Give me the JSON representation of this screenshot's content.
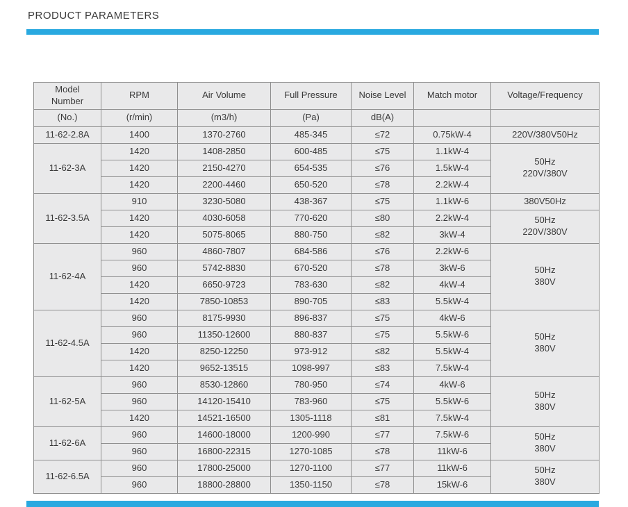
{
  "page": {
    "title": "PRODUCT PARAMETERS"
  },
  "theme": {
    "accent": "#29a9e0",
    "table_bg": "#e9e9ea",
    "table_border": "#8f8f8f",
    "text": "#3a3a3a"
  },
  "table": {
    "columns": [
      {
        "label": "Model\nNumber",
        "unit": "(No.)"
      },
      {
        "label": "RPM",
        "unit": "(r/min)"
      },
      {
        "label": "Air Volume",
        "unit": "(m3/h)"
      },
      {
        "label": "Full Pressure",
        "unit": "(Pa)"
      },
      {
        "label": "Noise Level",
        "unit": "dB(A)"
      },
      {
        "label": "Match motor",
        "unit": ""
      },
      {
        "label": "Voltage/Frequency",
        "unit": ""
      }
    ],
    "sections": [
      {
        "model": "11-62-2.8A",
        "rows": [
          [
            "1400",
            "1370-2760",
            "485-345",
            "≤72",
            "0.75kW-4"
          ]
        ],
        "voltage_spans": [
          {
            "span": 1,
            "text": "220V/380V50Hz"
          }
        ]
      },
      {
        "model": "11-62-3A",
        "rows": [
          [
            "1420",
            "1408-2850",
            "600-485",
            "≤75",
            "1.1kW-4"
          ],
          [
            "1420",
            "2150-4270",
            "654-535",
            "≤76",
            "1.5kW-4"
          ],
          [
            "1420",
            "2200-4460",
            "650-520",
            "≤78",
            "2.2kW-4"
          ]
        ],
        "voltage_spans": [
          {
            "span": 3,
            "text": "50Hz\n220V/380V"
          }
        ]
      },
      {
        "model": "11-62-3.5A",
        "rows": [
          [
            "910",
            "3230-5080",
            "438-367",
            "≤75",
            "1.1kW-6"
          ],
          [
            "1420",
            "4030-6058",
            "770-620",
            "≤80",
            "2.2kW-4"
          ],
          [
            "1420",
            "5075-8065",
            "880-750",
            "≤82",
            "3kW-4"
          ]
        ],
        "voltage_spans": [
          {
            "span": 1,
            "text": "380V50Hz"
          },
          {
            "span": 2,
            "text": "50Hz\n220V/380V"
          }
        ]
      },
      {
        "model": "11-62-4A",
        "rows": [
          [
            "960",
            "4860-7807",
            "684-586",
            "≤76",
            "2.2kW-6"
          ],
          [
            "960",
            "5742-8830",
            "670-520",
            "≤78",
            "3kW-6"
          ],
          [
            "1420",
            "6650-9723",
            "783-630",
            "≤82",
            "4kW-4"
          ],
          [
            "1420",
            "7850-10853",
            "890-705",
            "≤83",
            "5.5kW-4"
          ]
        ],
        "voltage_spans": [
          {
            "span": 4,
            "text": "50Hz\n380V"
          }
        ]
      },
      {
        "model": "11-62-4.5A",
        "rows": [
          [
            "960",
            "8175-9930",
            "896-837",
            "≤75",
            "4kW-6"
          ],
          [
            "960",
            "11350-12600",
            "880-837",
            "≤75",
            "5.5kW-6"
          ],
          [
            "1420",
            "8250-12250",
            "973-912",
            "≤82",
            "5.5kW-4"
          ],
          [
            "1420",
            "9652-13515",
            "1098-997",
            "≤83",
            "7.5kW-4"
          ]
        ],
        "voltage_spans": [
          {
            "span": 4,
            "text": "50Hz\n380V"
          }
        ]
      },
      {
        "model": "11-62-5A",
        "rows": [
          [
            "960",
            "8530-12860",
            "780-950",
            "≤74",
            "4kW-6"
          ],
          [
            "960",
            "14120-15410",
            "783-960",
            "≤75",
            "5.5kW-6"
          ],
          [
            "1420",
            "14521-16500",
            "1305-1118",
            "≤81",
            "7.5kW-4"
          ]
        ],
        "voltage_spans": [
          {
            "span": 3,
            "text": "50Hz\n380V"
          }
        ]
      },
      {
        "model": "11-62-6A",
        "rows": [
          [
            "960",
            "14600-18000",
            "1200-990",
            "≤77",
            "7.5kW-6"
          ],
          [
            "960",
            "16800-22315",
            "1270-1085",
            "≤78",
            "11kW-6"
          ]
        ],
        "voltage_spans": [
          {
            "span": 2,
            "text": "50Hz\n380V"
          }
        ]
      },
      {
        "model": "11-62-6.5A",
        "rows": [
          [
            "960",
            "17800-25000",
            "1270-1100",
            "≤77",
            "11kW-6"
          ],
          [
            "960",
            "18800-28800",
            "1350-1150",
            "≤78",
            "15kW-6"
          ]
        ],
        "voltage_spans": [
          {
            "span": 2,
            "text": "50Hz\n380V"
          }
        ]
      }
    ]
  }
}
